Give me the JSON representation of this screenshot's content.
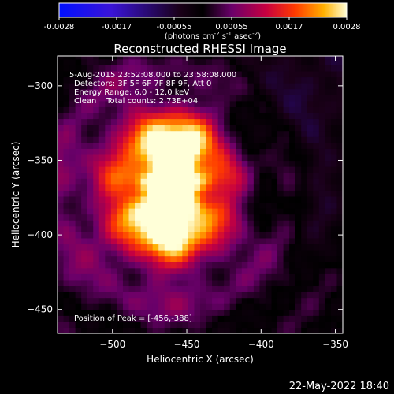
{
  "chart_data": {
    "type": "heatmap",
    "title": "Reconstructed RHESSI Image",
    "xlabel": "Heliocentric X (arcsec)",
    "ylabel": "Heliocentric Y (arcsec)",
    "xlim": [
      -537,
      -345
    ],
    "ylim": [
      -466,
      -280
    ],
    "xticks": [
      -500,
      -450,
      -400,
      -350
    ],
    "yticks": [
      -300,
      -350,
      -400,
      -450
    ],
    "colorbar": {
      "ticks": [
        "-0.0028",
        "-0.0017",
        "-0.00055",
        "0.00055",
        "0.0017",
        "0.0028"
      ],
      "unit_label": "(photons cm",
      "unit_exp1": "-2",
      "unit_mid": " s",
      "unit_exp2": "-1",
      "unit_tail": " asec",
      "unit_exp3": "-2",
      "unit_close": ")",
      "range": [
        -0.0028,
        0.0028
      ]
    },
    "annotations": {
      "time_range": "5-Aug-2015 23:52:08.000 to 23:58:08.000",
      "detectors": "Detectors: 3F 5F 6F 7F 8F 9F, Att 0",
      "energy": "Energy Range: 6.0 - 12.0 keV",
      "clean": "Clean    Total counts: 2.73E+04",
      "peak": "Position of Peak = [-456,-388]"
    },
    "peaks": [
      {
        "x": -458,
        "y": -346,
        "value": 0.0026
      },
      {
        "x": -462,
        "y": -386,
        "value": 0.0028
      }
    ],
    "footer_date": "22-May-2022 18:40"
  }
}
